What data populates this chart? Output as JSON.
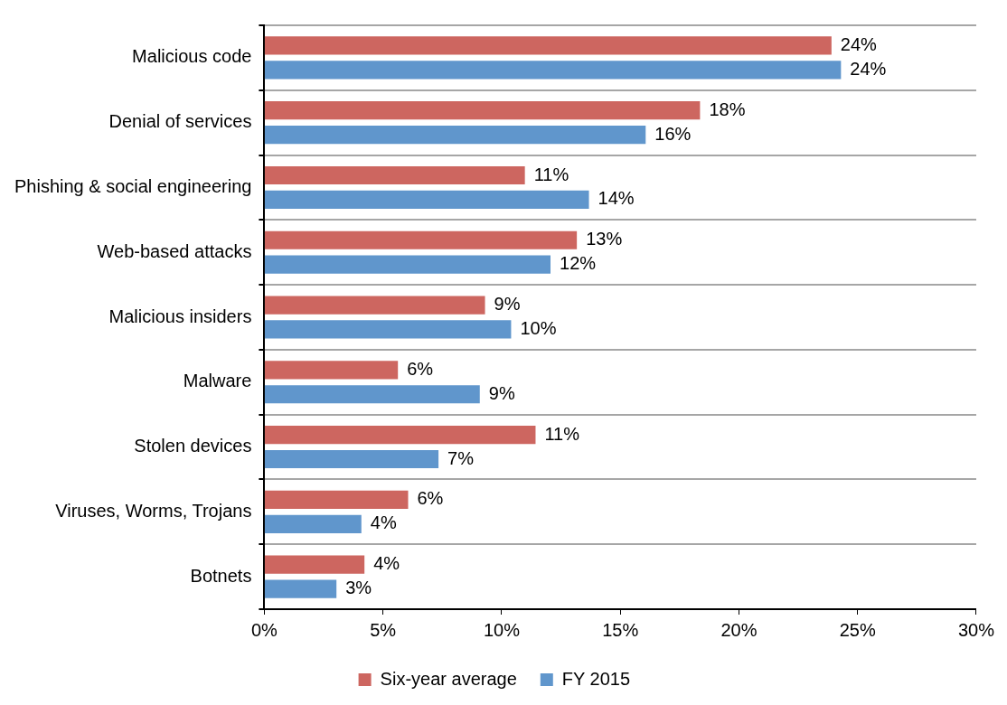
{
  "chart_data": {
    "type": "bar",
    "orientation": "horizontal",
    "categories": [
      "Malicious code",
      "Denial of services",
      "Phishing & social engineering",
      "Web-based attacks",
      "Malicious insiders",
      "Malware",
      "Stolen devices",
      "Viruses, Worms, Trojans",
      "Botnets"
    ],
    "series": [
      {
        "name": "Six-year average",
        "color": "#cd6660",
        "values": [
          23.9,
          18.36,
          10.98,
          13.17,
          9.3,
          5.63,
          11.43,
          6.06,
          4.22
        ],
        "value_labels": [
          "24%",
          "18%",
          "11%",
          "13%",
          "9%",
          "6%",
          "11%",
          "6%",
          "4%"
        ]
      },
      {
        "name": "FY 2015",
        "color": "#6096cc",
        "values": [
          24.3,
          16.07,
          13.68,
          12.06,
          10.4,
          9.08,
          7.34,
          4.09,
          3.04
        ],
        "value_labels": [
          "24%",
          "16%",
          "14%",
          "12%",
          "10%",
          "9%",
          "7%",
          "4%",
          "3%"
        ]
      }
    ],
    "xlim": [
      0,
      30
    ],
    "xticks": [
      {
        "value": 0,
        "label": "0%"
      },
      {
        "value": 5,
        "label": "5%"
      },
      {
        "value": 10,
        "label": "10%"
      },
      {
        "value": 15,
        "label": "15%"
      },
      {
        "value": 20,
        "label": "20%"
      },
      {
        "value": 25,
        "label": "25%"
      },
      {
        "value": 30,
        "label": "30%"
      }
    ],
    "grid": "y",
    "legend": "bottom"
  }
}
